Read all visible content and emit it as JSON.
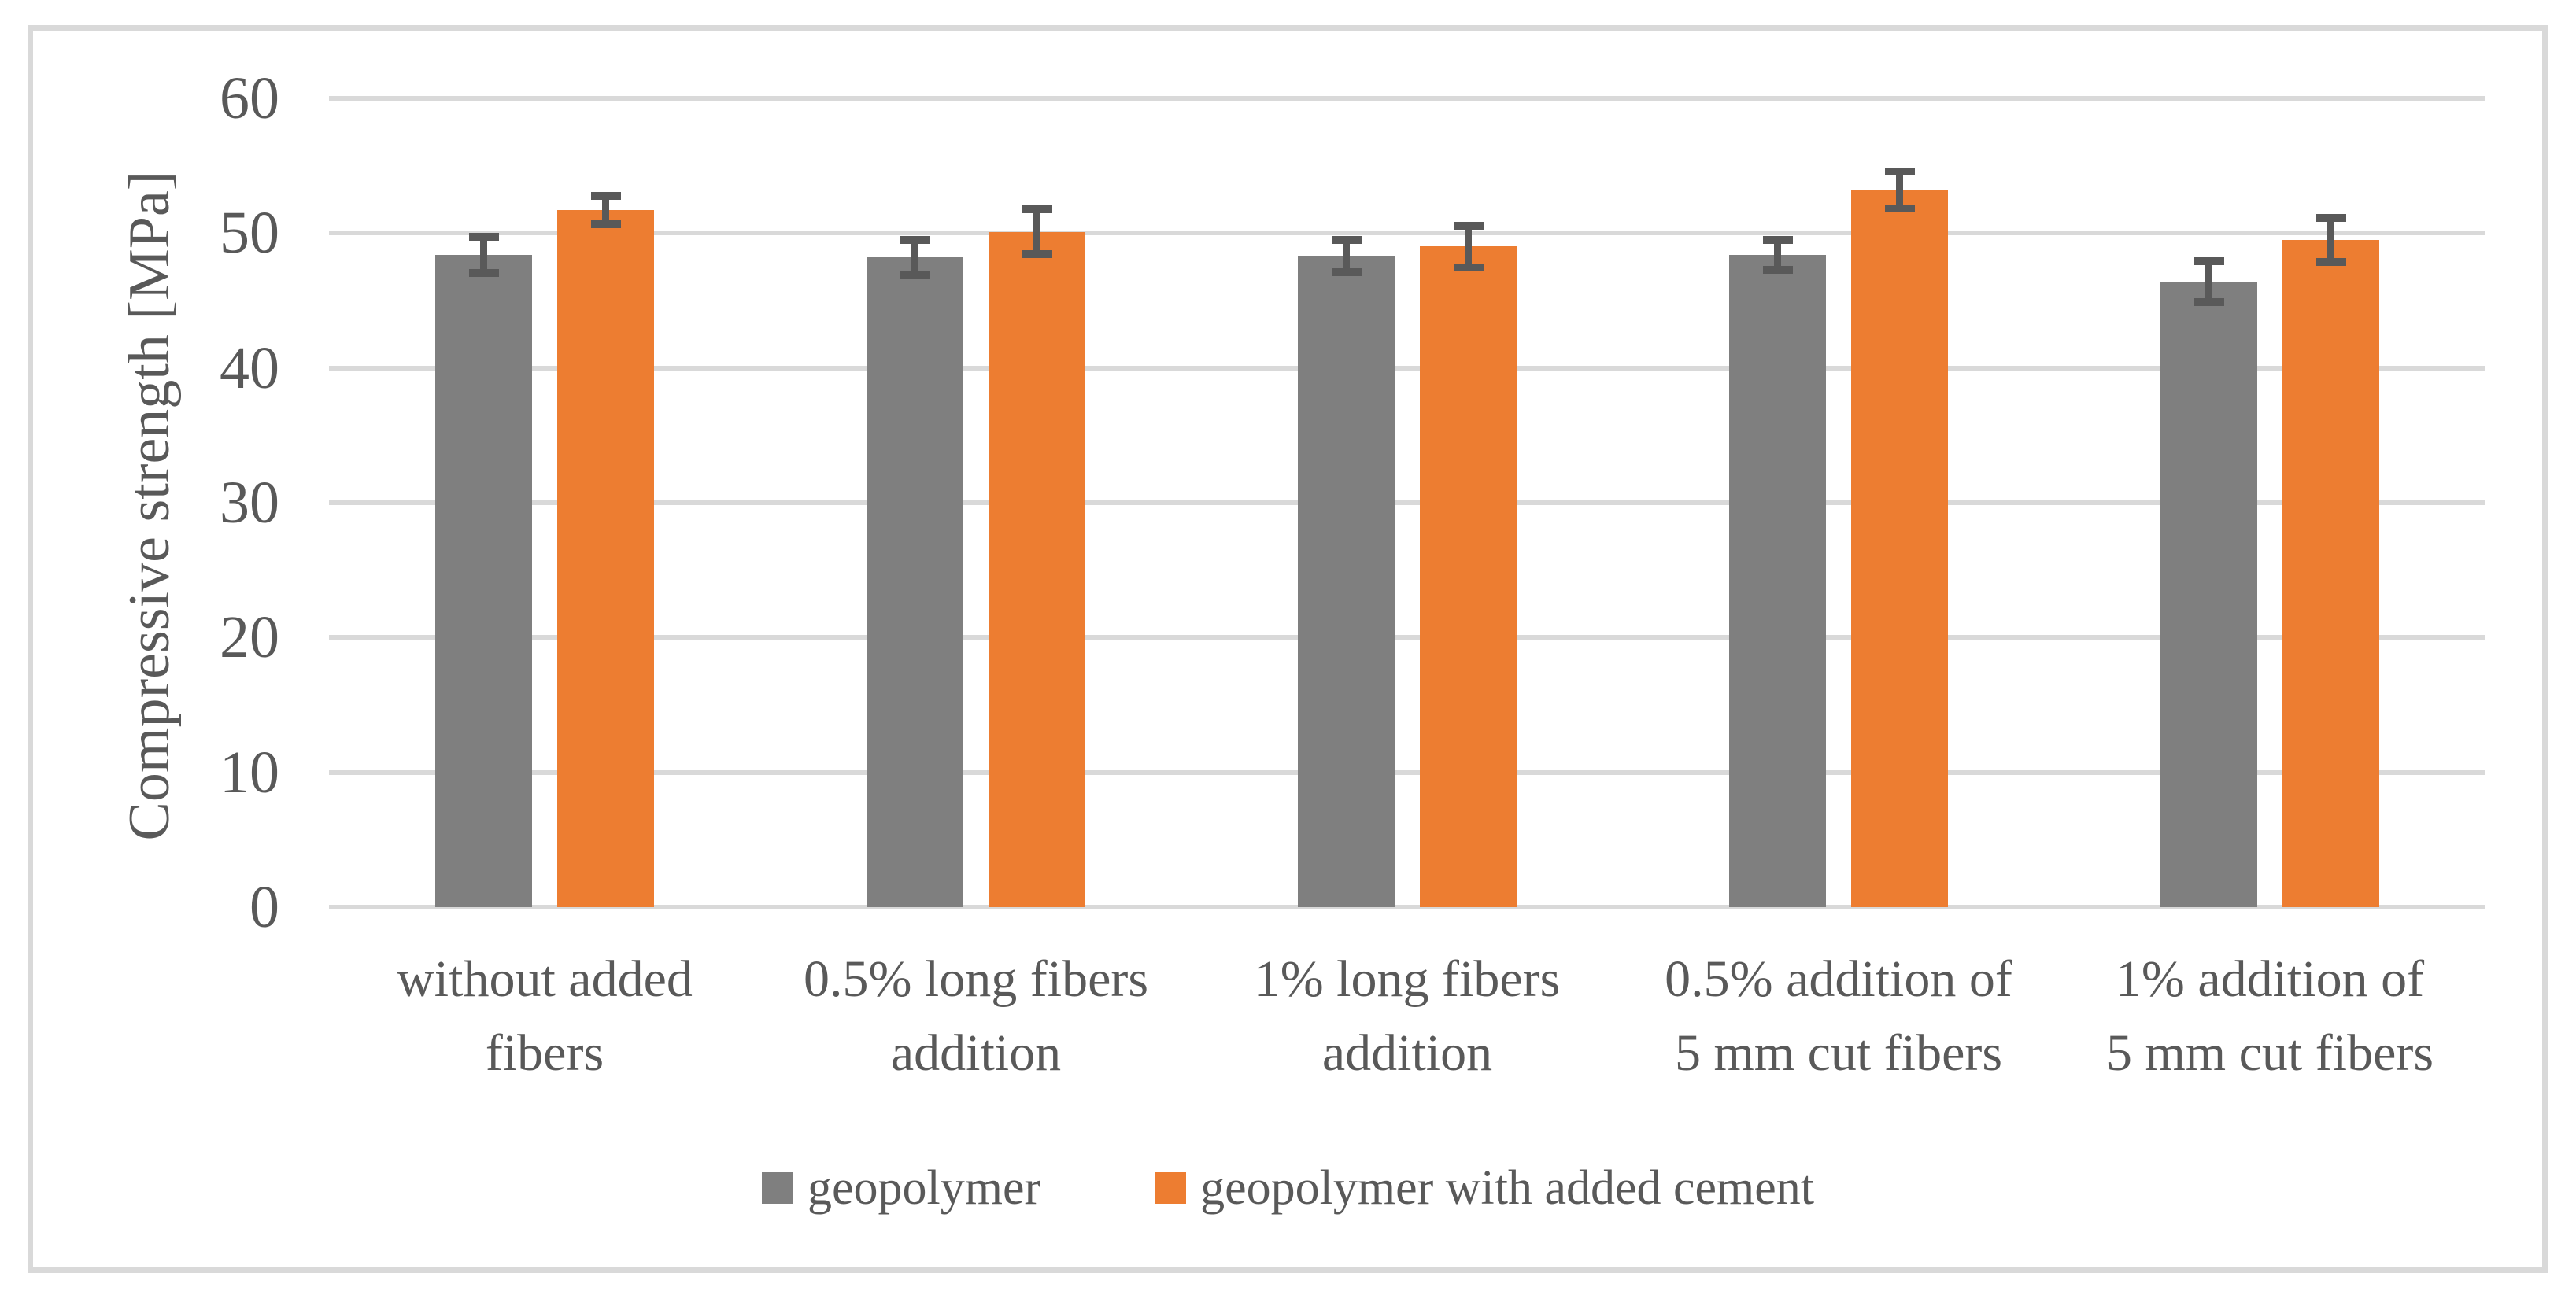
{
  "chart_data": {
    "type": "bar",
    "title": "",
    "ylabel": "Compressive strength [MPa]",
    "xlabel": "",
    "ylim": [
      0,
      60
    ],
    "yticks": [
      0,
      10,
      20,
      30,
      40,
      50,
      60
    ],
    "grid": true,
    "legend_position": "bottom-center",
    "categories": [
      "without added\nfibers",
      "0.5% long fibers\naddition",
      "1% long fibers\naddition",
      "0.5% addition of\n5 mm cut fibers",
      "1% addition of\n5 mm cut fibers"
    ],
    "series": [
      {
        "name": "geopolymer",
        "color": "#7F7F7F",
        "values": [
          48.4,
          48.2,
          48.3,
          48.4,
          46.4
        ],
        "errors": [
          1.35,
          1.3,
          1.2,
          1.1,
          1.5
        ]
      },
      {
        "name": "geopolymer with added cement",
        "color": "#ED7D31",
        "values": [
          51.7,
          50.1,
          49.0,
          53.2,
          49.5
        ],
        "errors": [
          1.05,
          1.65,
          1.55,
          1.4,
          1.65
        ]
      }
    ],
    "colors": {
      "error_bar": "#595959",
      "gridline": "#D9D9D9",
      "text": "#595959",
      "frame": "#D9D9D9",
      "background": "#FFFFFF"
    }
  }
}
